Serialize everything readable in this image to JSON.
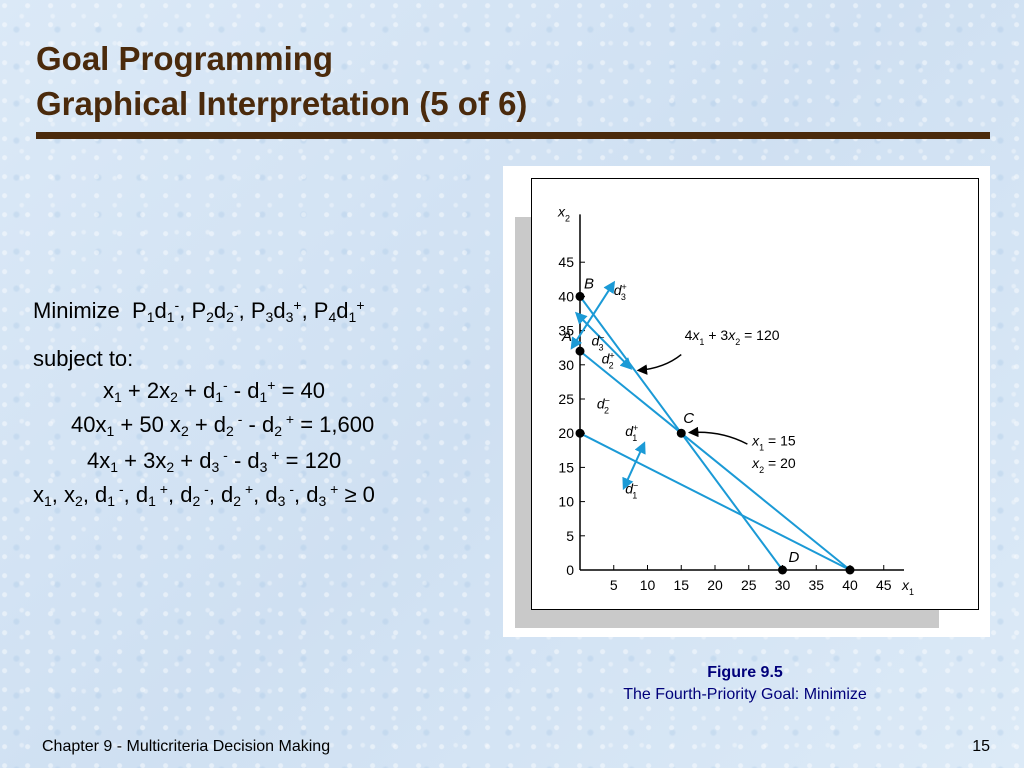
{
  "slide": {
    "title_line1": "Goal Programming",
    "title_line2": "Graphical Interpretation (5 of 6)",
    "footer_left": "Chapter 9 - Multicriteria Decision Making",
    "footer_page": "15",
    "title_color": "#4a2a0c"
  },
  "model": {
    "objective_prefix": "Minimize",
    "subject_to": "subject to:",
    "ge_zero": "≥ 0"
  },
  "figure": {
    "number": "Figure 9.5",
    "caption": "The Fourth-Priority Goal:  Minimize"
  },
  "chart_data": {
    "type": "line",
    "xlabel": "x1",
    "ylabel": "x2",
    "xlim": [
      0,
      45
    ],
    "ylim": [
      0,
      45
    ],
    "x_ticks": [
      5,
      10,
      15,
      20,
      25,
      30,
      35,
      40,
      45
    ],
    "y_ticks": [
      0,
      5,
      10,
      15,
      20,
      25,
      30,
      35,
      40,
      45
    ],
    "line_color": "#1b9ad6",
    "series": [
      {
        "name": "x1 + 2x2 = 40",
        "points": [
          [
            0,
            20
          ],
          [
            40,
            0
          ]
        ]
      },
      {
        "name": "40x1 + 50x2 = 1,600",
        "points": [
          [
            0,
            32
          ],
          [
            40,
            0
          ]
        ]
      },
      {
        "name": "4x1 + 3x2 = 120",
        "points": [
          [
            0,
            40
          ],
          [
            30,
            0
          ]
        ]
      }
    ],
    "series_label_printed": "4x1 + 3x2 = 120",
    "points": [
      {
        "label": "B",
        "x": 0,
        "y": 40
      },
      {
        "label": "A",
        "x": 0,
        "y": 32
      },
      {
        "label": "",
        "x": 0,
        "y": 20
      },
      {
        "label": "C",
        "x": 15,
        "y": 20
      },
      {
        "label": "D",
        "x": 30,
        "y": 0
      },
      {
        "label": "",
        "x": 40,
        "y": 0
      }
    ],
    "annotation_C": [
      "x1 = 15",
      "x2 = 20"
    ],
    "deviation_labels": [
      "d3+",
      "d3−",
      "d2+",
      "d2−",
      "d1+",
      "d1−"
    ]
  }
}
